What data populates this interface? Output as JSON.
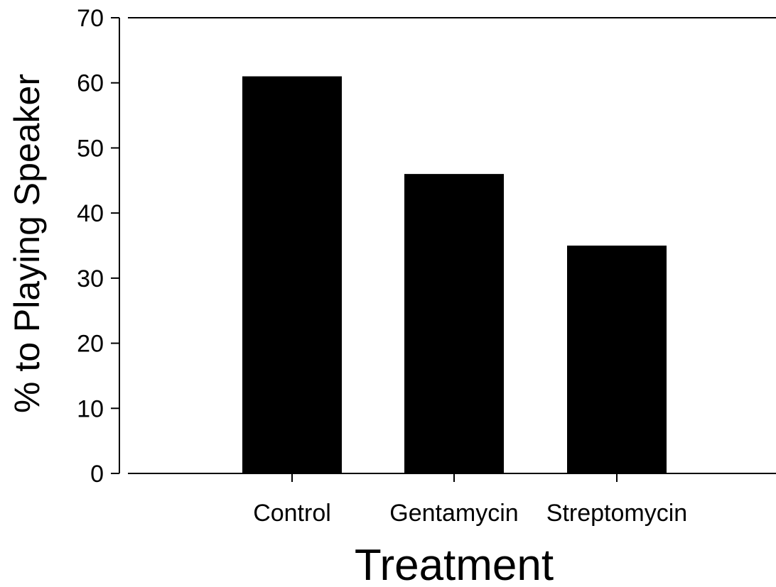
{
  "chart_data": {
    "type": "bar",
    "categories": [
      "Control",
      "Gentamycin",
      "Streptomycin"
    ],
    "values": [
      61,
      46,
      35
    ],
    "title": "",
    "xlabel": "Treatment",
    "ylabel": "% to Playing Speaker",
    "ylim": [
      0,
      70
    ],
    "yticks": [
      "0",
      "10",
      "20",
      "30",
      "40",
      "50",
      "60",
      "70"
    ],
    "bar_color": "#000000",
    "grid": false,
    "legend": "none"
  }
}
